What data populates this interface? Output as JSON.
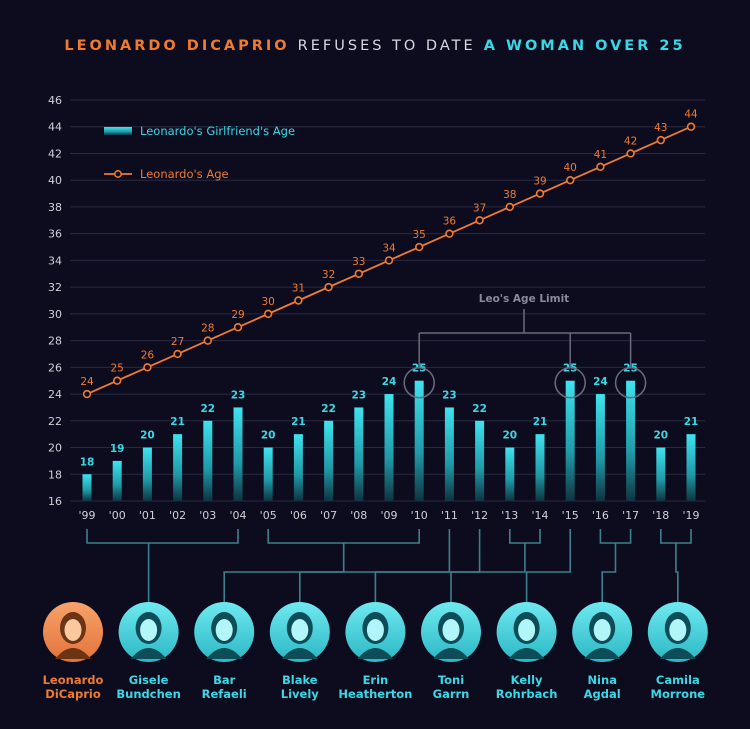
{
  "title": {
    "part1": "LEONARDO DICAPRIO",
    "part2": "REFUSES TO DATE",
    "part3": "A WOMAN OVER 25"
  },
  "colors": {
    "background": "#0d0c1f",
    "accent_orange": "#f07b2e",
    "accent_cyan": "#39d8e6",
    "grid": "#2a2942",
    "connector": "#3d7f8c",
    "limit_ring": "#6b6a7e"
  },
  "chart_data": {
    "type": "bar+line",
    "categories": [
      "'99",
      "'00",
      "'01",
      "'02",
      "'03",
      "'04",
      "'05",
      "'06",
      "'07",
      "'08",
      "'09",
      "'10",
      "'11",
      "'12",
      "'13",
      "'14",
      "'15",
      "'16",
      "'17",
      "'18",
      "'19"
    ],
    "series": [
      {
        "name": "Leonardo's Girlfriend's Age",
        "type": "bar",
        "values": [
          18,
          19,
          20,
          21,
          22,
          23,
          20,
          21,
          22,
          23,
          24,
          25,
          23,
          22,
          20,
          21,
          25,
          24,
          25,
          20,
          21
        ]
      },
      {
        "name": "Leonardo's Age",
        "type": "line",
        "values": [
          24,
          25,
          26,
          27,
          28,
          29,
          30,
          31,
          32,
          33,
          34,
          35,
          36,
          37,
          38,
          39,
          40,
          41,
          42,
          43,
          44
        ]
      }
    ],
    "yticks": [
      16,
      18,
      20,
      22,
      24,
      26,
      28,
      30,
      32,
      34,
      36,
      38,
      40,
      42,
      44,
      46
    ],
    "ylim": [
      16,
      46
    ],
    "grid": true,
    "legend_position": "top-left",
    "annotation": "Leo's Age Limit",
    "highlighted_categories": [
      "'10",
      "'15",
      "'17"
    ]
  },
  "people": [
    {
      "name": "Leonardo DiCaprio",
      "line1": "Leonardo",
      "line2": "DiCaprio",
      "photo": "portrait-leonardo",
      "is_leo": true,
      "year_span": [],
      "color": "#f07b2e"
    },
    {
      "name": "Gisele Bundchen",
      "line1": "Gisele",
      "line2": "Bundchen",
      "photo": "portrait-gisele",
      "year_span": [
        "'99",
        "'04"
      ],
      "color": "#39d8e6"
    },
    {
      "name": "Bar Refaeli",
      "line1": "Bar",
      "line2": "Refaeli",
      "photo": "portrait-bar",
      "year_span": [
        "'05",
        "'10"
      ],
      "color": "#39d8e6"
    },
    {
      "name": "Blake Lively",
      "line1": "Blake",
      "line2": "Lively",
      "photo": "portrait-blake",
      "year_span": [
        "'11"
      ],
      "color": "#39d8e6"
    },
    {
      "name": "Erin Heatherton",
      "line1": "Erin",
      "line2": "Heatherton",
      "photo": "portrait-erin",
      "year_span": [
        "'12"
      ],
      "color": "#39d8e6"
    },
    {
      "name": "Toni Garrn",
      "line1": "Toni",
      "line2": "Garrn",
      "photo": "portrait-toni",
      "year_span": [
        "'13",
        "'14"
      ],
      "color": "#39d8e6"
    },
    {
      "name": "Kelly Rohrbach",
      "line1": "Kelly",
      "line2": "Rohrbach",
      "photo": "portrait-kelly",
      "year_span": [
        "'15"
      ],
      "color": "#39d8e6"
    },
    {
      "name": "Nina Agdal",
      "line1": "Nina",
      "line2": "Agdal",
      "photo": "portrait-nina",
      "year_span": [
        "'16",
        "'17"
      ],
      "color": "#39d8e6"
    },
    {
      "name": "Camila Morrone",
      "line1": "Camila",
      "line2": "Morrone",
      "photo": "portrait-camila",
      "year_span": [
        "'18",
        "'19"
      ],
      "color": "#39d8e6"
    }
  ]
}
